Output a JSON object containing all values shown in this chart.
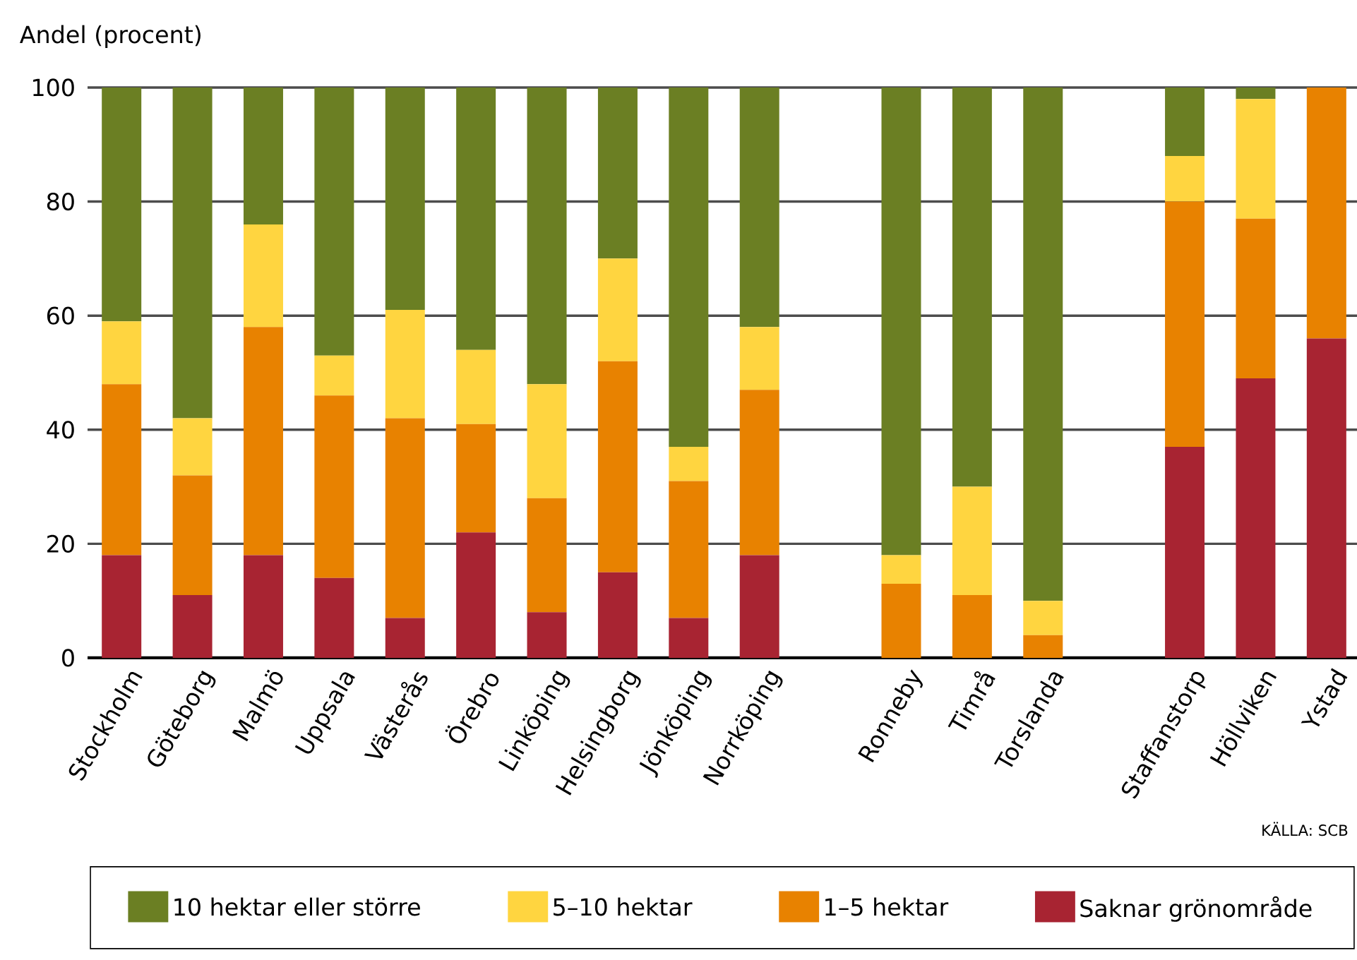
{
  "chart_data": {
    "type": "bar",
    "stacked": true,
    "ylabel": "Andel (procent)",
    "categories": [
      "Stockholm",
      "Göteborg",
      "Malmö",
      "Uppsala",
      "Västerås",
      "Örebro",
      "Linköping",
      "Helsingborg",
      "Jönköping",
      "Norrköping",
      null,
      "Ronneby",
      "Timrå",
      "Torslanda",
      null,
      "Staffanstorp",
      "Höllviken",
      "Ystad"
    ],
    "series": [
      {
        "name": "Saknar grönområde",
        "color": "#a82432",
        "values": [
          18,
          11,
          18,
          14,
          7,
          22,
          8,
          15,
          7,
          18,
          null,
          0,
          0,
          0,
          null,
          37,
          49,
          56
        ]
      },
      {
        "name": "1–5 hektar",
        "color": "#e88200",
        "values": [
          30,
          21,
          40,
          32,
          35,
          19,
          20,
          37,
          24,
          29,
          null,
          13,
          11,
          4,
          null,
          43,
          28,
          44
        ]
      },
      {
        "name": "5–10 hektar",
        "color": "#ffd540",
        "values": [
          11,
          10,
          18,
          7,
          19,
          13,
          20,
          18,
          6,
          11,
          null,
          5,
          19,
          6,
          null,
          8,
          21,
          0
        ]
      },
      {
        "name": "10 hektar eller större",
        "color": "#6b7f23",
        "values": [
          41,
          58,
          24,
          47,
          39,
          46,
          52,
          30,
          63,
          42,
          null,
          82,
          70,
          90,
          null,
          12,
          2,
          0
        ]
      }
    ],
    "ylim": [
      0,
      100
    ],
    "yticks": [
      0,
      20,
      40,
      60,
      80,
      100
    ],
    "grid": "y",
    "legend": "bottom",
    "annotations": [
      "KÄLLA: SCB"
    ]
  }
}
